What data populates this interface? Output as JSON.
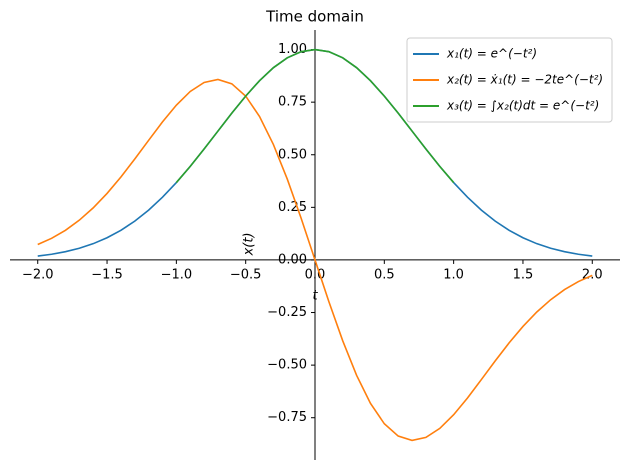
{
  "chart_data": {
    "type": "line",
    "title": "Time domain",
    "xlabel": "t",
    "ylabel": "x(t)",
    "x": [
      -2.0,
      -1.9,
      -1.8,
      -1.7,
      -1.6,
      -1.5,
      -1.4,
      -1.3,
      -1.2,
      -1.1,
      -1.0,
      -0.9,
      -0.8,
      -0.7,
      -0.6,
      -0.5,
      -0.4,
      -0.3,
      -0.2,
      -0.1,
      0.0,
      0.1,
      0.2,
      0.3,
      0.4,
      0.5,
      0.6,
      0.7,
      0.8,
      0.9,
      1.0,
      1.1,
      1.2,
      1.3,
      1.4,
      1.5,
      1.6,
      1.7,
      1.8,
      1.9,
      2.0
    ],
    "series": [
      {
        "name": "x₁(t) = e^(−t²)",
        "color": "#1f77b4",
        "values": [
          0.01832,
          0.02705,
          0.03916,
          0.05558,
          0.0773,
          0.1054,
          0.14086,
          0.18452,
          0.23693,
          0.2982,
          0.36788,
          0.44486,
          0.52729,
          0.61263,
          0.69768,
          0.7788,
          0.85214,
          0.91393,
          0.96079,
          0.99005,
          1,
          0.99005,
          0.96079,
          0.91393,
          0.85214,
          0.7788,
          0.69768,
          0.61263,
          0.52729,
          0.44486,
          0.36788,
          0.2982,
          0.23693,
          0.18452,
          0.14086,
          0.1054,
          0.0773,
          0.05558,
          0.03916,
          0.02705,
          0.01832
        ]
      },
      {
        "name": "x₂(t) = ẋ₁(t) = −2te^(−t²)",
        "color": "#ff7f0e",
        "values": [
          0.07326,
          0.10279,
          0.14098,
          0.18897,
          0.24736,
          0.3162,
          0.39441,
          0.47975,
          0.56863,
          0.65604,
          0.73576,
          0.80075,
          0.84366,
          0.85768,
          0.83722,
          0.7788,
          0.68171,
          0.54836,
          0.38432,
          0.19801,
          0,
          -0.19801,
          -0.38432,
          -0.54836,
          -0.68171,
          -0.7788,
          -0.83722,
          -0.85768,
          -0.84366,
          -0.80075,
          -0.73576,
          -0.65604,
          -0.56863,
          -0.47975,
          -0.39441,
          -0.3162,
          -0.24736,
          -0.18897,
          -0.14098,
          -0.10279,
          -0.07326
        ]
      },
      {
        "name": "x₃(t) = ∫x₂(t)dt = e^(−t²)",
        "color": "#2ca02c",
        "values": [
          null,
          null,
          null,
          null,
          null,
          null,
          null,
          null,
          null,
          null,
          0.36788,
          0.44486,
          0.52729,
          0.61263,
          0.69768,
          0.7788,
          0.85214,
          0.91393,
          0.96079,
          0.99005,
          1,
          0.99005,
          0.96079,
          0.91393,
          0.85214,
          0.7788,
          0.69768,
          0.61263,
          0.52729,
          0.44486,
          0.36788,
          null,
          null,
          null,
          null,
          null,
          null,
          null,
          null,
          null,
          null
        ]
      }
    ],
    "xlim": [
      -2.2,
      2.2
    ],
    "ylim": [
      -0.951,
      1.093
    ],
    "xticks": [
      {
        "value": -2,
        "label": "−2.0"
      },
      {
        "value": -1.5,
        "label": "−1.5"
      },
      {
        "value": -1,
        "label": "−1.0"
      },
      {
        "value": -0.5,
        "label": "−0.5"
      },
      {
        "value": 0,
        "label": "0.0"
      },
      {
        "value": 0.5,
        "label": "0.5"
      },
      {
        "value": 1,
        "label": "1.0"
      },
      {
        "value": 1.5,
        "label": "1.5"
      },
      {
        "value": 2,
        "label": "2.0"
      }
    ],
    "yticks": [
      {
        "value": -0.75,
        "label": "−0.75"
      },
      {
        "value": -0.5,
        "label": "−0.50"
      },
      {
        "value": -0.25,
        "label": "−0.25"
      },
      {
        "value": 0,
        "label": "0.00"
      },
      {
        "value": 0.25,
        "label": "0.25"
      },
      {
        "value": 0.5,
        "label": "0.50"
      },
      {
        "value": 0.75,
        "label": "0.75"
      },
      {
        "value": 1,
        "label": "1.00"
      }
    ],
    "legend": "upper right"
  }
}
